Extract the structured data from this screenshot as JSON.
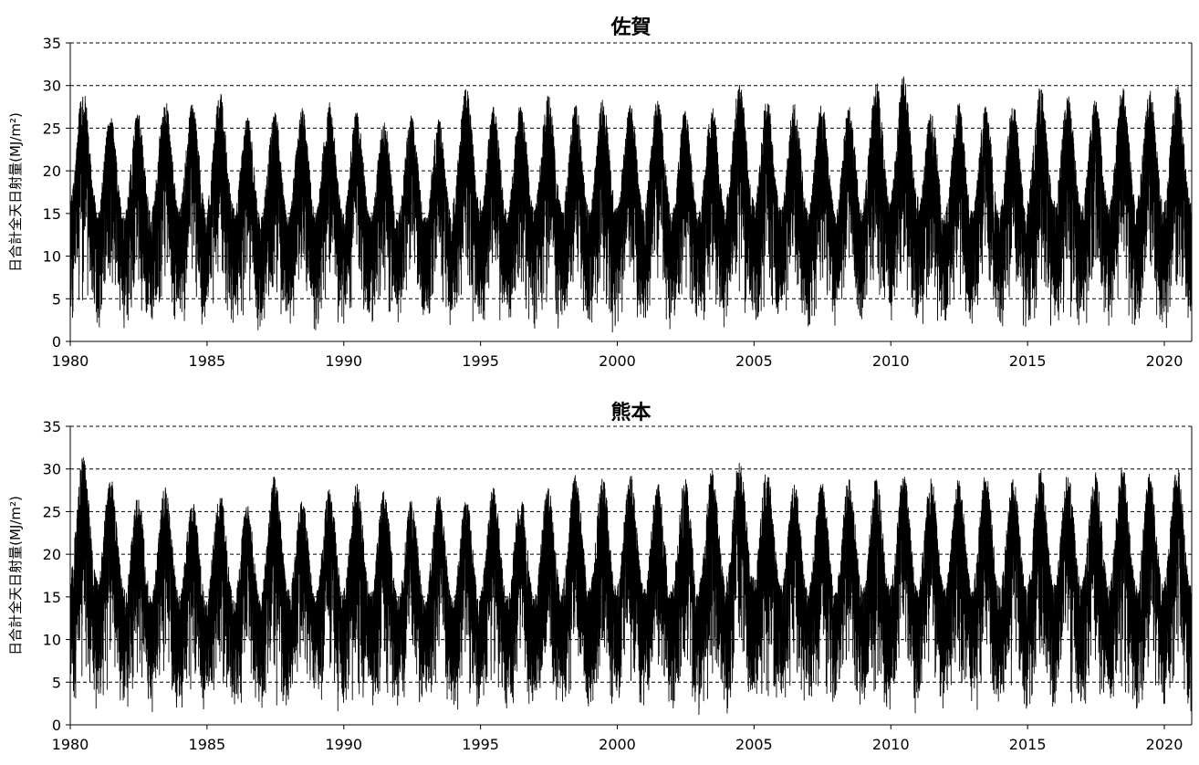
{
  "chart_data": [
    {
      "type": "line",
      "title": "佐賀",
      "xlabel": "",
      "ylabel": "日合計全天日射量(MJ/m²)",
      "xlim": [
        1980,
        2021
      ],
      "ylim": [
        0,
        35
      ],
      "xticks": [
        "1980",
        "1985",
        "1990",
        "1995",
        "2000",
        "2005",
        "2010",
        "2015",
        "2020"
      ],
      "yticks": [
        "0",
        "5",
        "10",
        "15",
        "20",
        "25",
        "30",
        "35"
      ],
      "grid": true,
      "gridlines_y": [
        5,
        10,
        15,
        20,
        25,
        30,
        35
      ],
      "line_color": "#000000",
      "series": [
        {
          "x": [
            "1980",
            "1981",
            "1982",
            "1983",
            "1984",
            "1985",
            "1986",
            "1987",
            "1988",
            "1989",
            "1990",
            "1991",
            "1992",
            "1993",
            "1994",
            "1995",
            "1996",
            "1997",
            "1998",
            "1999",
            "2000",
            "2001",
            "2002",
            "2003",
            "2004",
            "2005",
            "2006",
            "2007",
            "2008",
            "2009",
            "2010",
            "2011",
            "2012",
            "2013",
            "2014",
            "2015",
            "2016",
            "2017",
            "2018",
            "2019",
            "2020"
          ],
          "annual_max": [
            29.5,
            26.5,
            27.0,
            28.5,
            28.0,
            29.2,
            26.5,
            27.0,
            27.5,
            28.0,
            27.0,
            26.0,
            26.5,
            26.0,
            30.0,
            27.5,
            28.0,
            29.0,
            28.0,
            28.5,
            28.0,
            28.5,
            27.0,
            27.5,
            30.5,
            28.5,
            28.0,
            28.0,
            27.5,
            30.5,
            31.3,
            27.0,
            28.0,
            27.5,
            28.0,
            30.0,
            29.0,
            28.5,
            29.8,
            29.5,
            30.0
          ],
          "annual_min": [
            1.5,
            1.5,
            1.2,
            1.3,
            1.5,
            1.4,
            1.2,
            1.6,
            1.1,
            1.3,
            1.4,
            0.9,
            1.2,
            1.2,
            1.3,
            1.5,
            1.2,
            1.0,
            1.1,
            0.8,
            1.4,
            1.2,
            1.3,
            1.1,
            1.3,
            1.2,
            1.4,
            1.0,
            1.2,
            1.1,
            1.2,
            1.1,
            1.3,
            1.2,
            1.0,
            1.1,
            1.2,
            1.3,
            1.1,
            1.2,
            1.0
          ]
        }
      ]
    },
    {
      "type": "line",
      "title": "熊本",
      "xlabel": "",
      "ylabel": "日合計全天日射量(MJ/m²)",
      "xlim": [
        1980,
        2021
      ],
      "ylim": [
        0,
        35
      ],
      "xticks": [
        "1980",
        "1985",
        "1990",
        "1995",
        "2000",
        "2005",
        "2010",
        "2015",
        "2020"
      ],
      "yticks": [
        "0",
        "5",
        "10",
        "15",
        "20",
        "25",
        "30",
        "35"
      ],
      "grid": true,
      "gridlines_y": [
        5,
        10,
        15,
        20,
        25,
        30,
        35
      ],
      "line_color": "#000000",
      "series": [
        {
          "x": [
            "1980",
            "1981",
            "1982",
            "1983",
            "1984",
            "1985",
            "1986",
            "1987",
            "1988",
            "1989",
            "1990",
            "1991",
            "1992",
            "1993",
            "1994",
            "1995",
            "1996",
            "1997",
            "1998",
            "1999",
            "2000",
            "2001",
            "2002",
            "2003",
            "2004",
            "2005",
            "2006",
            "2007",
            "2008",
            "2009",
            "2010",
            "2011",
            "2012",
            "2013",
            "2014",
            "2015",
            "2016",
            "2017",
            "2018",
            "2019",
            "2020"
          ],
          "annual_max": [
            31.5,
            29.2,
            27.0,
            28.0,
            26.5,
            27.5,
            26.0,
            29.2,
            26.5,
            28.0,
            28.5,
            27.5,
            26.5,
            27.0,
            26.5,
            28.0,
            27.0,
            28.0,
            29.5,
            29.0,
            29.5,
            28.5,
            29.0,
            30.0,
            31.5,
            30.0,
            28.5,
            28.5,
            29.0,
            29.0,
            29.5,
            29.0,
            29.0,
            29.5,
            29.0,
            30.0,
            29.5,
            30.0,
            30.3,
            29.5,
            30.3
          ],
          "annual_min": [
            1.5,
            1.2,
            1.3,
            1.1,
            1.0,
            1.2,
            1.3,
            1.0,
            1.4,
            1.2,
            1.1,
            1.3,
            1.2,
            1.3,
            0.8,
            1.2,
            1.4,
            1.1,
            1.2,
            1.0,
            1.3,
            1.2,
            1.1,
            1.4,
            1.0,
            1.2,
            1.1,
            1.3,
            1.2,
            1.0,
            1.1,
            1.2,
            1.3,
            1.0,
            1.2,
            1.1,
            1.3,
            1.2,
            1.0,
            1.1,
            0.9
          ]
        }
      ]
    }
  ]
}
